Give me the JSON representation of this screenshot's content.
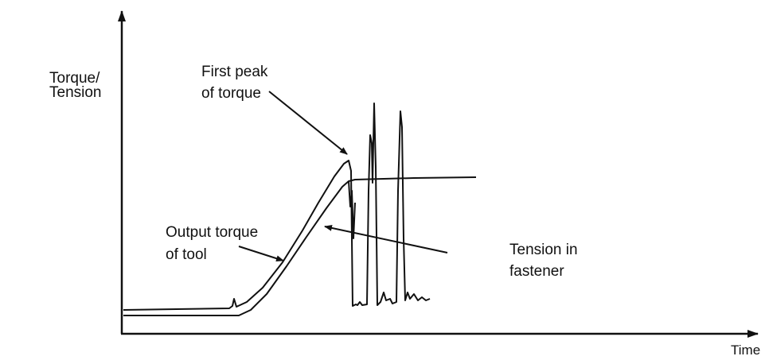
{
  "y_axis_label": [
    "Torque/",
    "Tension"
  ],
  "x_axis_label": "Time",
  "annotations": [
    {
      "lines": [
        "First peak",
        "of torque"
      ]
    },
    {
      "lines": [
        "Output torque",
        "of tool"
      ]
    },
    {
      "lines": [
        "Tension in",
        "fastener"
      ]
    }
  ]
}
